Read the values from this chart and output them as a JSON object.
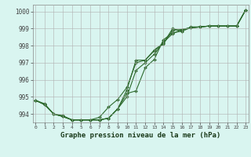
{
  "x": [
    0,
    1,
    2,
    3,
    4,
    5,
    6,
    7,
    8,
    9,
    10,
    11,
    12,
    13,
    14,
    15,
    16,
    17,
    18,
    19,
    20,
    21,
    22,
    23
  ],
  "line1": [
    994.8,
    994.6,
    994.0,
    993.9,
    993.65,
    993.65,
    993.65,
    993.65,
    993.75,
    994.3,
    995.4,
    997.15,
    997.15,
    997.75,
    998.15,
    999.0,
    998.85,
    999.1,
    999.1,
    999.15,
    999.15,
    999.15,
    999.15,
    1000.1
  ],
  "line2": [
    994.8,
    994.55,
    994.0,
    993.85,
    993.65,
    993.65,
    993.65,
    993.65,
    993.75,
    994.3,
    995.2,
    995.35,
    996.7,
    997.2,
    998.35,
    998.75,
    998.85,
    999.05,
    999.1,
    999.15,
    999.15,
    999.15,
    999.15,
    1000.1
  ],
  "line3": [
    994.8,
    994.55,
    994.0,
    993.85,
    993.65,
    993.65,
    993.65,
    993.65,
    993.75,
    994.3,
    995.0,
    996.55,
    997.0,
    997.5,
    998.2,
    998.7,
    998.95,
    999.05,
    999.1,
    999.15,
    999.15,
    999.15,
    999.15,
    1000.1
  ],
  "line4": [
    994.8,
    994.55,
    994.0,
    993.85,
    993.65,
    993.65,
    993.65,
    993.8,
    994.4,
    994.85,
    995.55,
    997.0,
    997.15,
    997.7,
    998.1,
    998.9,
    998.95,
    999.05,
    999.1,
    999.15,
    999.15,
    999.15,
    999.15,
    1000.1
  ],
  "bg_color": "#d9f5f0",
  "line_color": "#2d6a2d",
  "marker_color": "#2d6a2d",
  "grid_color": "#b0b0b0",
  "title": "Graphe pression niveau de la mer (hPa)",
  "ylabel_values": [
    994,
    995,
    996,
    997,
    998,
    999,
    1000
  ],
  "xlabel_values": [
    0,
    1,
    2,
    3,
    4,
    5,
    6,
    7,
    8,
    9,
    10,
    11,
    12,
    13,
    14,
    15,
    16,
    17,
    18,
    19,
    20,
    21,
    22,
    23
  ],
  "ylim": [
    993.5,
    1000.4
  ],
  "xlim": [
    -0.3,
    23.3
  ]
}
